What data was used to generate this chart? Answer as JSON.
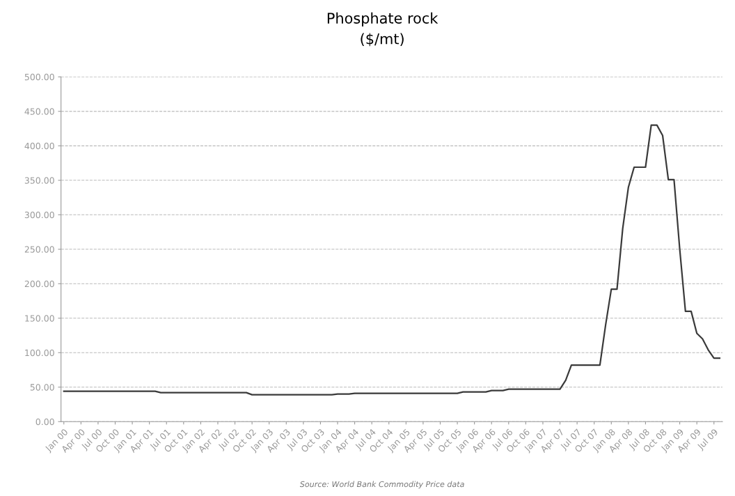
{
  "chart_data": {
    "type": "line",
    "title": "Phosphate rock\n($/mt)",
    "categories": [
      "Jan 00",
      null,
      null,
      "Apr 00",
      null,
      null,
      "Jul 00",
      null,
      null,
      "Oct 00",
      null,
      null,
      "Jan 01",
      null,
      null,
      "Apr 01",
      null,
      null,
      "Jul 01",
      null,
      null,
      "Oct 01",
      null,
      null,
      "Jan 02",
      null,
      null,
      "Apr 02",
      null,
      null,
      "Jul 02",
      null,
      null,
      "Oct 02",
      null,
      null,
      "Jan 03",
      null,
      null,
      "Apr 03",
      null,
      null,
      "Jul 03",
      null,
      null,
      "Oct 03",
      null,
      null,
      "Jan 04",
      null,
      null,
      "Apr 04",
      null,
      null,
      "Jul 04",
      null,
      null,
      "Oct 04",
      null,
      null,
      "Jan 05",
      null,
      null,
      "Apr 05",
      null,
      null,
      "Jul 05",
      null,
      null,
      "Oct 05",
      null,
      null,
      "Jan 06",
      null,
      null,
      "Apr 06",
      null,
      null,
      "Jul 06",
      null,
      null,
      "Oct 06",
      null,
      null,
      "Jan 07",
      null,
      null,
      "Apr 07",
      null,
      null,
      "Jul 07",
      null,
      null,
      "Oct 07",
      null,
      null,
      "Jan 08",
      null,
      null,
      "Apr 08",
      null,
      null,
      "Jul 08",
      null,
      null,
      "Oct 08",
      null,
      null,
      "Jan 09",
      null,
      null,
      "Apr 09",
      null,
      null,
      "Jul 09",
      null
    ],
    "series": [
      {
        "color": "#3a3a3a",
        "values": [
          44,
          44,
          44,
          44,
          44,
          44,
          44,
          44,
          44,
          44,
          44,
          44,
          44,
          44,
          44,
          44,
          44,
          42,
          42,
          42,
          42,
          42,
          42,
          42,
          42,
          42,
          42,
          42,
          42,
          42,
          42,
          42,
          42,
          39,
          39,
          39,
          39,
          39,
          39,
          39,
          39,
          39,
          39,
          39,
          39,
          39,
          39,
          39,
          40,
          40,
          40,
          41,
          41,
          41,
          41,
          41,
          41,
          41,
          41,
          41,
          41,
          41,
          41,
          41,
          41,
          41,
          41,
          41,
          41,
          41,
          43,
          43,
          43,
          43,
          43,
          45,
          45,
          45,
          47,
          47,
          47,
          47,
          47,
          47,
          47,
          47,
          47,
          47,
          60,
          82,
          82,
          82,
          82,
          82,
          82,
          140,
          192,
          192,
          280,
          340,
          369,
          369,
          369,
          430,
          430,
          415,
          351,
          351,
          250,
          160,
          160,
          128,
          120,
          104,
          92,
          92
        ]
      }
    ],
    "ylim": [
      0,
      500
    ],
    "yticks": [
      {
        "value": 0,
        "label": "0.00"
      },
      {
        "value": 50,
        "label": "50.00"
      },
      {
        "value": 100,
        "label": "100.00"
      },
      {
        "value": 150,
        "label": "150.00"
      },
      {
        "value": 200,
        "label": "200.00"
      },
      {
        "value": 250,
        "label": "250.00"
      },
      {
        "value": 300,
        "label": "300.00"
      },
      {
        "value": 350,
        "label": "350.00"
      },
      {
        "value": 400,
        "label": "400.00"
      },
      {
        "value": 450,
        "label": "450.00"
      },
      {
        "value": 500,
        "label": "500.00"
      }
    ],
    "grid": "y",
    "marker": "none",
    "line_style": "solid",
    "annotations": [
      "Source: World Bank Commodity Price data"
    ]
  }
}
